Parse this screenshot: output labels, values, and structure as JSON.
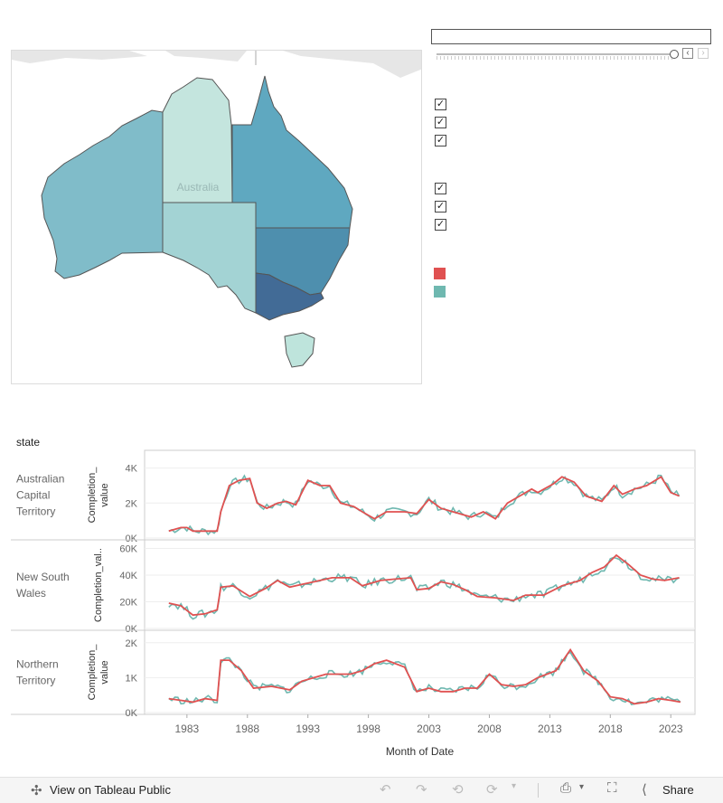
{
  "map": {
    "label": "Australia",
    "colors": {
      "wa": "#80bcc9",
      "nt": "#c4e5de",
      "sa": "#a3d3d4",
      "qld": "#5fa8c0",
      "nsw": "#4e8fae",
      "vic": "#426b96",
      "tas": "#bee4dc",
      "neighbors": "#e6e6e6",
      "border": "#555555"
    }
  },
  "legend": {
    "swatch_colors": [
      "#e05151",
      "#6fb8b0"
    ]
  },
  "chart": {
    "title": "",
    "state_header": "state",
    "x_axis_title": "Month of Date",
    "x_ticks": [
      "1983",
      "1988",
      "1993",
      "1998",
      "2003",
      "2008",
      "2013",
      "2018",
      "2023"
    ],
    "x_tick_values": [
      1983,
      1988,
      1993,
      1998,
      2003,
      2008,
      2013,
      2018,
      2023
    ],
    "x_range": [
      1979.5,
      2025
    ],
    "series_colors": {
      "actual": "#6fb8b0",
      "trend": "#e05151"
    },
    "panels": [
      {
        "state_lines": [
          "Australian",
          "Capital",
          "Territory"
        ],
        "y_title_lines": [
          "Completion_",
          "value"
        ],
        "y_ticks": [
          "4K",
          "2K",
          "0K"
        ],
        "y_tick_values": [
          4000,
          2000,
          0
        ],
        "ylim": [
          0,
          4600
        ],
        "points": [
          [
            1981.5,
            400
          ],
          [
            1982.5,
            600
          ],
          [
            1983,
            600
          ],
          [
            1983.5,
            400
          ],
          [
            1984.5,
            400
          ],
          [
            1985.5,
            400
          ],
          [
            1985.8,
            1500
          ],
          [
            1986.5,
            3000
          ],
          [
            1987.3,
            3300
          ],
          [
            1988.2,
            3400
          ],
          [
            1988.8,
            2000
          ],
          [
            1989.6,
            1700
          ],
          [
            1990.5,
            2000
          ],
          [
            1991.2,
            2100
          ],
          [
            1992,
            1900
          ],
          [
            1993,
            3300
          ],
          [
            1994,
            3000
          ],
          [
            1994.8,
            3000
          ],
          [
            1995.7,
            2000
          ],
          [
            1996.8,
            1800
          ],
          [
            1997.5,
            1500
          ],
          [
            1998.5,
            1100
          ],
          [
            1999.5,
            1500
          ],
          [
            2001,
            1500
          ],
          [
            2002,
            1400
          ],
          [
            2003,
            2200
          ],
          [
            2004,
            1700
          ],
          [
            2005,
            1500
          ],
          [
            2006.5,
            1200
          ],
          [
            2007.5,
            1500
          ],
          [
            2008.5,
            1100
          ],
          [
            2009.5,
            2000
          ],
          [
            2010.5,
            2400
          ],
          [
            2011.5,
            2800
          ],
          [
            2012,
            2600
          ],
          [
            2013.3,
            3100
          ],
          [
            2014,
            3500
          ],
          [
            2015,
            3200
          ],
          [
            2016,
            2400
          ],
          [
            2017.3,
            2100
          ],
          [
            2018.3,
            3000
          ],
          [
            2019,
            2500
          ],
          [
            2020,
            2800
          ],
          [
            2021,
            3000
          ],
          [
            2022.2,
            3500
          ],
          [
            2023,
            2600
          ],
          [
            2023.7,
            2400
          ]
        ]
      },
      {
        "state_lines": [
          "New South",
          "Wales"
        ],
        "y_title_lines": [
          "Completion_val.."
        ],
        "y_ticks": [
          "60K",
          "40K",
          "20K",
          "0K"
        ],
        "y_tick_values": [
          60000,
          40000,
          20000,
          0
        ],
        "ylim": [
          0,
          61000
        ],
        "points": [
          [
            1981.5,
            19000
          ],
          [
            1982.5,
            17000
          ],
          [
            1983.5,
            10000
          ],
          [
            1984.5,
            11000
          ],
          [
            1985.5,
            14000
          ],
          [
            1985.8,
            31000
          ],
          [
            1986.8,
            32000
          ],
          [
            1988.2,
            24000
          ],
          [
            1989.5,
            30000
          ],
          [
            1990.5,
            36000
          ],
          [
            1991.5,
            31000
          ],
          [
            1992.5,
            33000
          ],
          [
            1993.5,
            35000
          ],
          [
            1995,
            38000
          ],
          [
            1996.5,
            38000
          ],
          [
            1997.5,
            32000
          ],
          [
            1999,
            36000
          ],
          [
            2000.2,
            37000
          ],
          [
            2001.5,
            38000
          ],
          [
            2002,
            29000
          ],
          [
            2003,
            30000
          ],
          [
            2004,
            35000
          ],
          [
            2005,
            33000
          ],
          [
            2006,
            29000
          ],
          [
            2007,
            24000
          ],
          [
            2008.5,
            23000
          ],
          [
            2010,
            21000
          ],
          [
            2011,
            25000
          ],
          [
            2012.5,
            25000
          ],
          [
            2014,
            32000
          ],
          [
            2015.5,
            36000
          ],
          [
            2016.5,
            42000
          ],
          [
            2017.5,
            46000
          ],
          [
            2018.5,
            55000
          ],
          [
            2019.5,
            48000
          ],
          [
            2020.5,
            40000
          ],
          [
            2021.5,
            37000
          ],
          [
            2022.5,
            36000
          ],
          [
            2023.7,
            38000
          ]
        ]
      },
      {
        "state_lines": [
          "Northern",
          "Territory"
        ],
        "y_title_lines": [
          "Completion_",
          "value"
        ],
        "y_ticks": [
          "2K",
          "1K",
          "0K"
        ],
        "y_tick_values": [
          2000,
          1000,
          0
        ],
        "ylim": [
          0,
          2150
        ],
        "points": [
          [
            1981.5,
            400
          ],
          [
            1982.5,
            350
          ],
          [
            1983.5,
            300
          ],
          [
            1984.5,
            400
          ],
          [
            1985.5,
            350
          ],
          [
            1985.8,
            1500
          ],
          [
            1986.5,
            1500
          ],
          [
            1987.5,
            1200
          ],
          [
            1988.5,
            700
          ],
          [
            1990,
            750
          ],
          [
            1991.5,
            650
          ],
          [
            1992.5,
            900
          ],
          [
            1993.5,
            1000
          ],
          [
            1994.5,
            1100
          ],
          [
            1995.5,
            1100
          ],
          [
            1996.5,
            1100
          ],
          [
            1997.5,
            1200
          ],
          [
            1998.5,
            1400
          ],
          [
            1999.5,
            1500
          ],
          [
            2001,
            1300
          ],
          [
            2002,
            600
          ],
          [
            2003,
            700
          ],
          [
            2004,
            600
          ],
          [
            2005,
            600
          ],
          [
            2006,
            700
          ],
          [
            2007,
            700
          ],
          [
            2008,
            1100
          ],
          [
            2009,
            800
          ],
          [
            2010,
            750
          ],
          [
            2011,
            800
          ],
          [
            2012,
            1000
          ],
          [
            2013.5,
            1200
          ],
          [
            2014.7,
            1800
          ],
          [
            2015.8,
            1200
          ],
          [
            2017,
            900
          ],
          [
            2018,
            450
          ],
          [
            2019,
            400
          ],
          [
            2020,
            250
          ],
          [
            2021,
            300
          ],
          [
            2022,
            400
          ],
          [
            2023,
            350
          ],
          [
            2023.8,
            300
          ]
        ]
      }
    ]
  },
  "footer": {
    "view_label": "View on Tableau Public",
    "share_label": "Share"
  }
}
